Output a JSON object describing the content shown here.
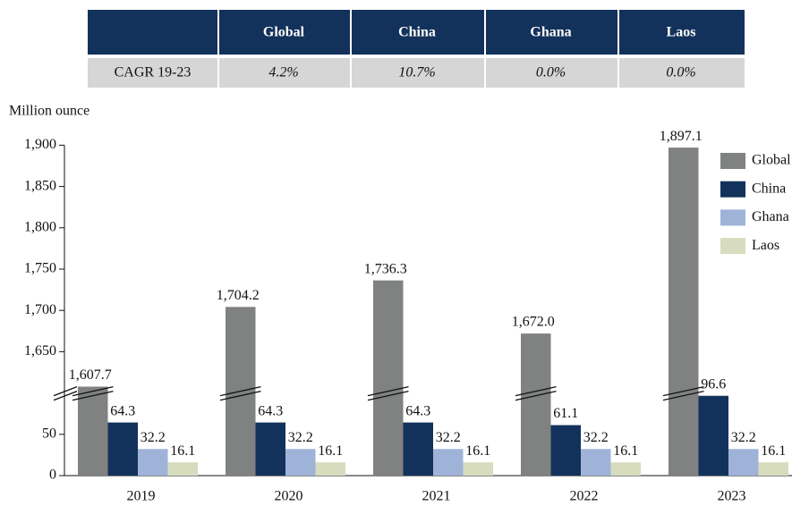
{
  "table": {
    "columns": [
      "Global",
      "China",
      "Ghana",
      "Laos"
    ],
    "rows": [
      [
        "CAGR 19-23",
        "4.2%",
        "10.7%",
        "0.0%",
        "0.0%"
      ]
    ]
  },
  "chart_data": {
    "type": "bar",
    "y_label": "Million ounce",
    "categories": [
      "2019",
      "2020",
      "2021",
      "2022",
      "2023"
    ],
    "series": [
      {
        "name": "Global",
        "color": "#7f8280",
        "values": [
          1607.7,
          1704.2,
          1736.3,
          1672.0,
          1897.1
        ],
        "value_labels": [
          "1,607.7",
          "1,704.2",
          "1,736.3",
          "1,672.0",
          "1,897.1"
        ]
      },
      {
        "name": "China",
        "color": "#13325b",
        "values": [
          64.3,
          64.3,
          64.3,
          61.1,
          96.6
        ]
      },
      {
        "name": "Ghana",
        "color": "#9fb3d8",
        "values": [
          32.2,
          32.2,
          32.2,
          32.2,
          32.2
        ]
      },
      {
        "name": "Laos",
        "color": "#d7dcbf",
        "values": [
          16.1,
          16.1,
          16.1,
          16.1,
          16.1
        ]
      }
    ],
    "ylim": [
      0,
      1900
    ],
    "ybreak": [
      100,
      1600
    ],
    "yticks": [
      0,
      50,
      {
        "value": 1650,
        "label": "1,650"
      },
      {
        "value": 1700,
        "label": "1,700"
      },
      {
        "value": 1750,
        "label": "1,750"
      },
      {
        "value": 1800,
        "label": "1,800"
      },
      {
        "value": 1850,
        "label": "1,850"
      },
      {
        "value": 1900,
        "label": "1,900"
      }
    ],
    "legend": "upper right"
  }
}
